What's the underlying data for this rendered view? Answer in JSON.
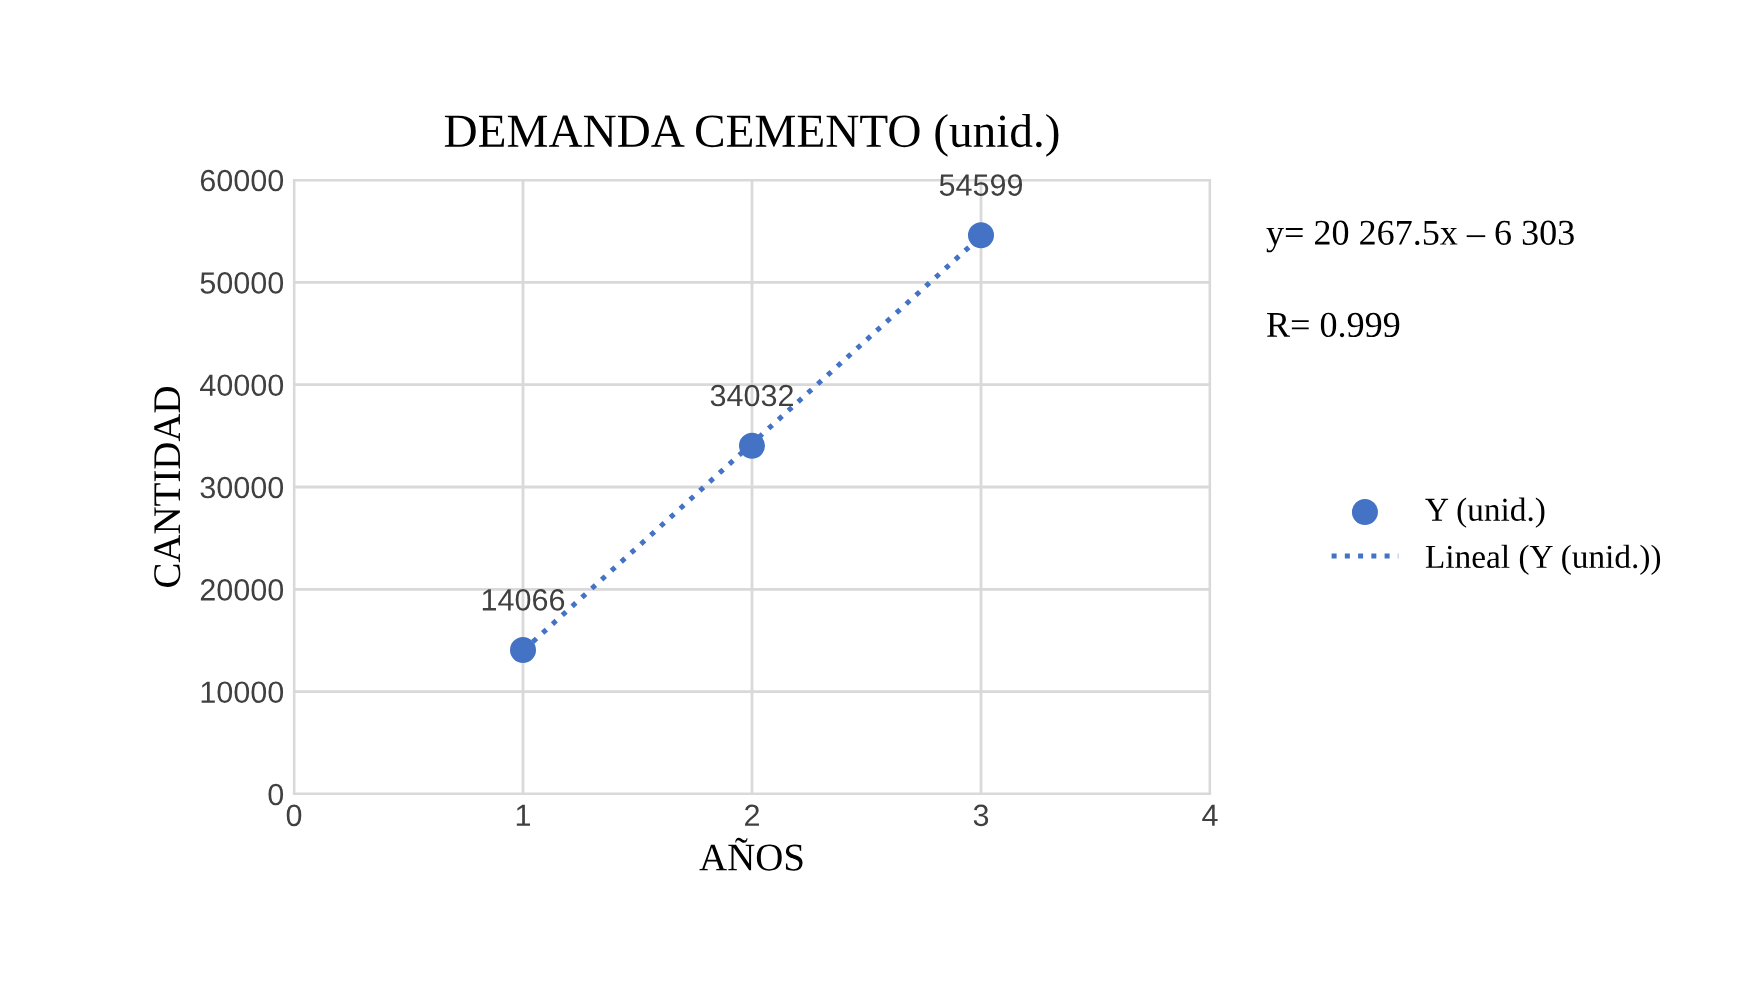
{
  "chart_data": {
    "type": "scatter",
    "title": "DEMANDA CEMENTO (unid.)",
    "xlabel": "AÑOS",
    "ylabel": "CANTIDAD",
    "series": [
      {
        "name": "Y (unid.)",
        "color": "#4472c4",
        "x": [
          1,
          2,
          3
        ],
        "values": [
          14066,
          34032,
          54599
        ],
        "value_labels": [
          "14066",
          "34032",
          "54599"
        ],
        "marker": "circle"
      },
      {
        "name": "Lineal (Y (unid.))",
        "type": "line",
        "color": "#4472c4",
        "x": [
          1,
          3
        ],
        "values": [
          14000,
          54500
        ],
        "line_style": "dotted",
        "marker": "none"
      }
    ],
    "xlim": [
      0,
      4
    ],
    "xticks": [
      0,
      1,
      2,
      3,
      4
    ],
    "ylim": [
      0,
      60000
    ],
    "yticks": [
      0,
      10000,
      20000,
      30000,
      40000,
      50000,
      60000
    ],
    "grid": true,
    "legend": "right",
    "annotations": [
      "y= 20 267.5x – 6 303",
      "R= 0.999"
    ]
  }
}
